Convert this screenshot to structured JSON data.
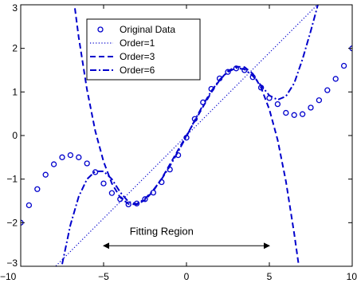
{
  "chart_data": {
    "type": "line",
    "xlim": [
      -10,
      10
    ],
    "ylim": [
      -3,
      3
    ],
    "x_ticks": [
      -10,
      -5,
      0,
      5,
      10
    ],
    "y_ticks": [
      -3,
      -2,
      -1,
      0,
      1,
      2,
      3
    ],
    "x_tick_labels": [
      "−10",
      "−5",
      "0",
      "5",
      "10"
    ],
    "y_tick_labels": [
      "−3",
      "−2",
      "−1",
      "0",
      "1",
      "2",
      "3"
    ],
    "grid": false,
    "legend_position": "top-left",
    "colors": {
      "data": "#0000cc",
      "axis": "#000000"
    },
    "series": [
      {
        "name": "Original Data",
        "style": "markers",
        "marker": "circle",
        "x": [
          -10,
          -9.5,
          -9,
          -8.5,
          -8,
          -7.5,
          -7,
          -6.5,
          -6,
          -5.5,
          -5,
          -4.5,
          -4,
          -3.5,
          -3,
          -2.5,
          -2,
          -1.5,
          -1,
          -0.5,
          0,
          0.5,
          1,
          1.5,
          2,
          2.5,
          3,
          3.5,
          4,
          4.5,
          5,
          5.5,
          6,
          6.5,
          7,
          7.5,
          8,
          8.5,
          9,
          9.5,
          10
        ],
        "y": [
          -2.0,
          -1.6,
          -1.23,
          -0.9,
          -0.66,
          -0.5,
          -0.45,
          -0.5,
          -0.64,
          -0.84,
          -1.1,
          -1.32,
          -1.46,
          -1.58,
          -1.56,
          -1.46,
          -1.31,
          -1.07,
          -0.78,
          -0.45,
          -0.05,
          0.38,
          0.76,
          1.07,
          1.31,
          1.46,
          1.54,
          1.5,
          1.34,
          1.1,
          0.86,
          0.72,
          0.52,
          0.47,
          0.49,
          0.64,
          0.81,
          1.04,
          1.3,
          1.6,
          2.0
        ]
      },
      {
        "name": "Order=1",
        "style": "dotted",
        "x": [
          -8,
          8
        ],
        "y": [
          -3.04,
          3.04
        ]
      },
      {
        "name": "Order=3",
        "style": "dashed",
        "x": [
          -6.8,
          -6.5,
          -6,
          -5.5,
          -5,
          -4.5,
          -4,
          -3.5,
          -3,
          -2.5,
          -2,
          -1.5,
          -1,
          -0.5,
          0,
          0.5,
          1,
          1.5,
          2,
          2.5,
          3,
          3.5,
          4,
          4.5,
          5,
          5.5,
          6,
          6.5,
          6.8,
          7.2
        ],
        "y": [
          3.12,
          2.25,
          1.05,
          0.1,
          -0.6,
          -1.1,
          -1.42,
          -1.57,
          -1.58,
          -1.48,
          -1.27,
          -0.99,
          -0.66,
          -0.33,
          0.0,
          0.33,
          0.66,
          0.99,
          1.27,
          1.48,
          1.58,
          1.57,
          1.42,
          1.1,
          0.6,
          -0.1,
          -1.05,
          -2.25,
          -3.05,
          -3.05
        ]
      },
      {
        "name": "Order=6",
        "style": "dashdot",
        "x": [
          -7.5,
          -7,
          -6.5,
          -6,
          -5.5,
          -5,
          -4.5,
          -4,
          -3.5,
          -3,
          -2.5,
          -2,
          -1.5,
          -1,
          -0.5,
          0,
          0.5,
          1,
          1.5,
          2,
          2.5,
          3,
          3.5,
          4,
          4.5,
          5,
          5.5,
          6,
          6.5,
          7,
          7.5,
          8,
          8.5
        ],
        "y": [
          -2.95,
          -2.05,
          -1.4,
          -1.0,
          -0.82,
          -0.82,
          -1.0,
          -1.3,
          -1.52,
          -1.57,
          -1.45,
          -1.25,
          -1.0,
          -0.7,
          -0.37,
          -0.02,
          0.35,
          0.7,
          1.02,
          1.28,
          1.46,
          1.55,
          1.52,
          1.37,
          1.15,
          0.92,
          0.82,
          0.9,
          1.2,
          1.75,
          2.4,
          3.1,
          3.5
        ]
      }
    ],
    "annotations": [
      {
        "text": "Fitting Region",
        "arrow_from_x": -5,
        "arrow_to_x": 5,
        "arrow_y": -2.53,
        "text_x": -1.5,
        "text_y": -2.28
      }
    ]
  }
}
